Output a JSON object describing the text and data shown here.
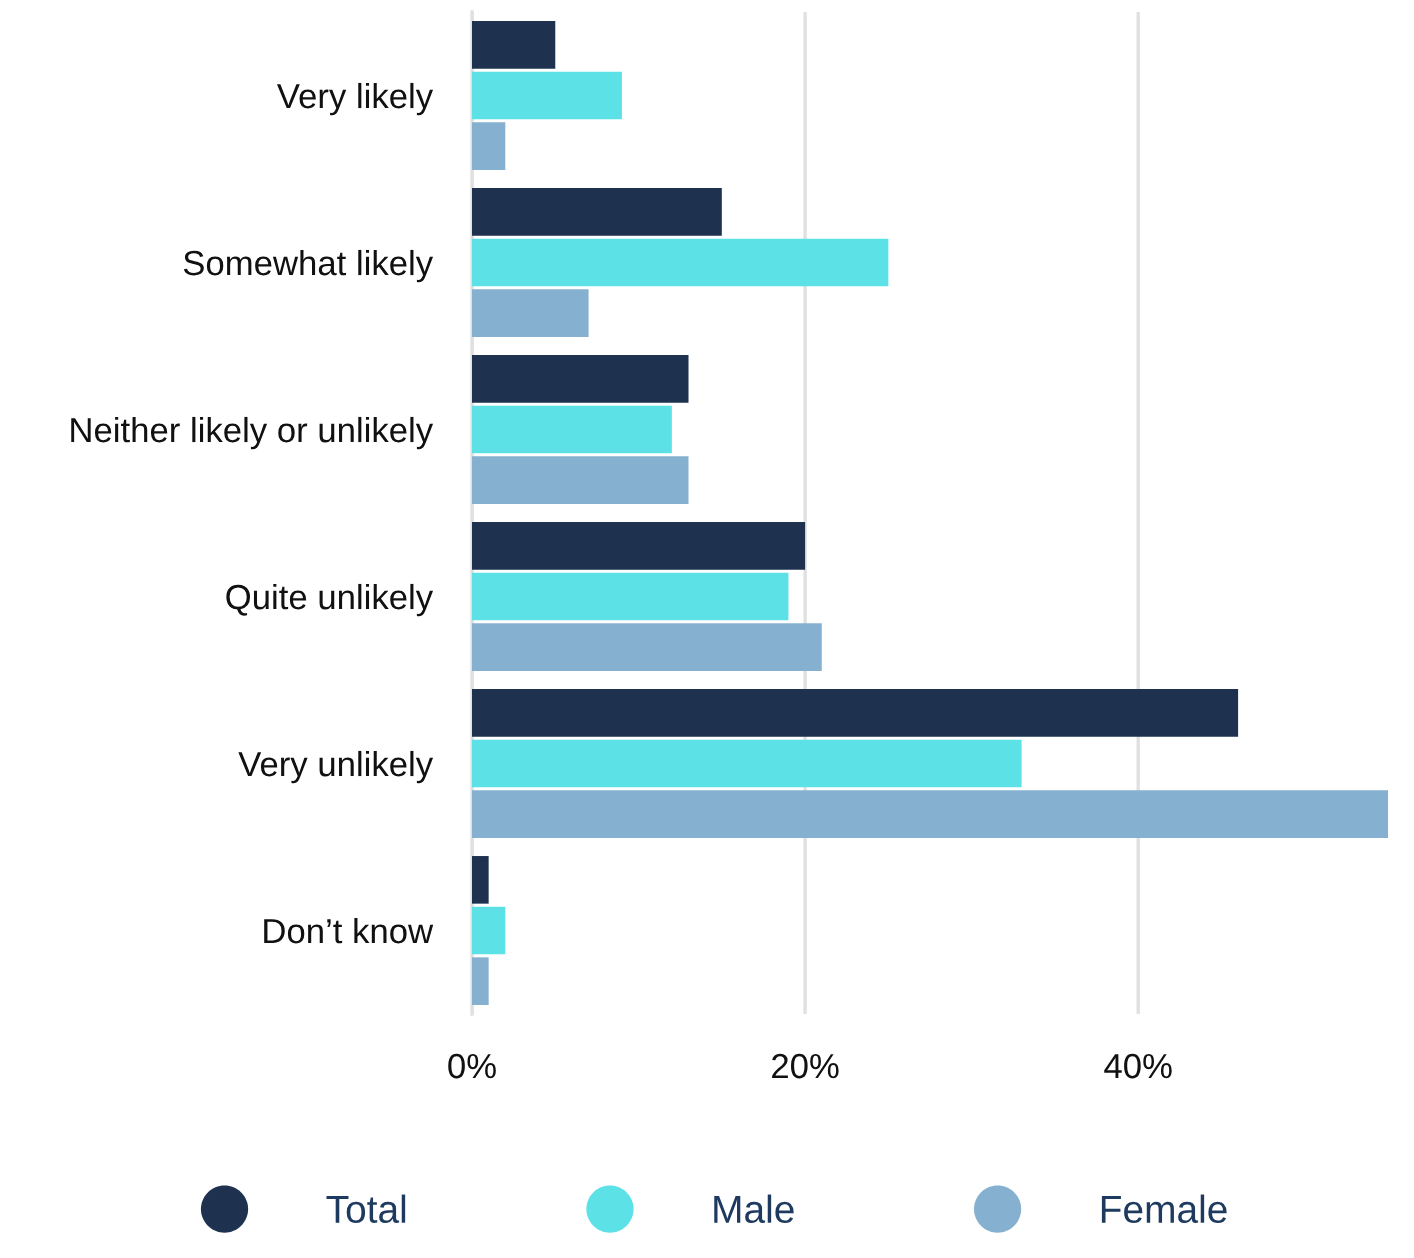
{
  "chart_data": {
    "type": "bar",
    "orientation": "horizontal",
    "categories": [
      "Very likely",
      "Somewhat likely",
      "Neither likely or unlikely",
      "Quite unlikely",
      "Very unlikely",
      "Don’t know"
    ],
    "series": [
      {
        "name": "Total",
        "color": "#1e3250",
        "values": [
          5,
          15,
          13,
          20,
          46,
          1
        ]
      },
      {
        "name": "Male",
        "color": "#5ce1e6",
        "values": [
          9,
          25,
          12,
          19,
          33,
          2
        ]
      },
      {
        "name": "Female",
        "color": "#85b0cf",
        "values": [
          2,
          7,
          13,
          21,
          55,
          1
        ]
      }
    ],
    "xlim": [
      0,
      55
    ],
    "xticks": [
      {
        "value": 0,
        "label": "0%"
      },
      {
        "value": 20,
        "label": "20%"
      },
      {
        "value": 40,
        "label": "40%"
      }
    ],
    "grid": "x",
    "legend": "bottom",
    "marker": "circle"
  }
}
